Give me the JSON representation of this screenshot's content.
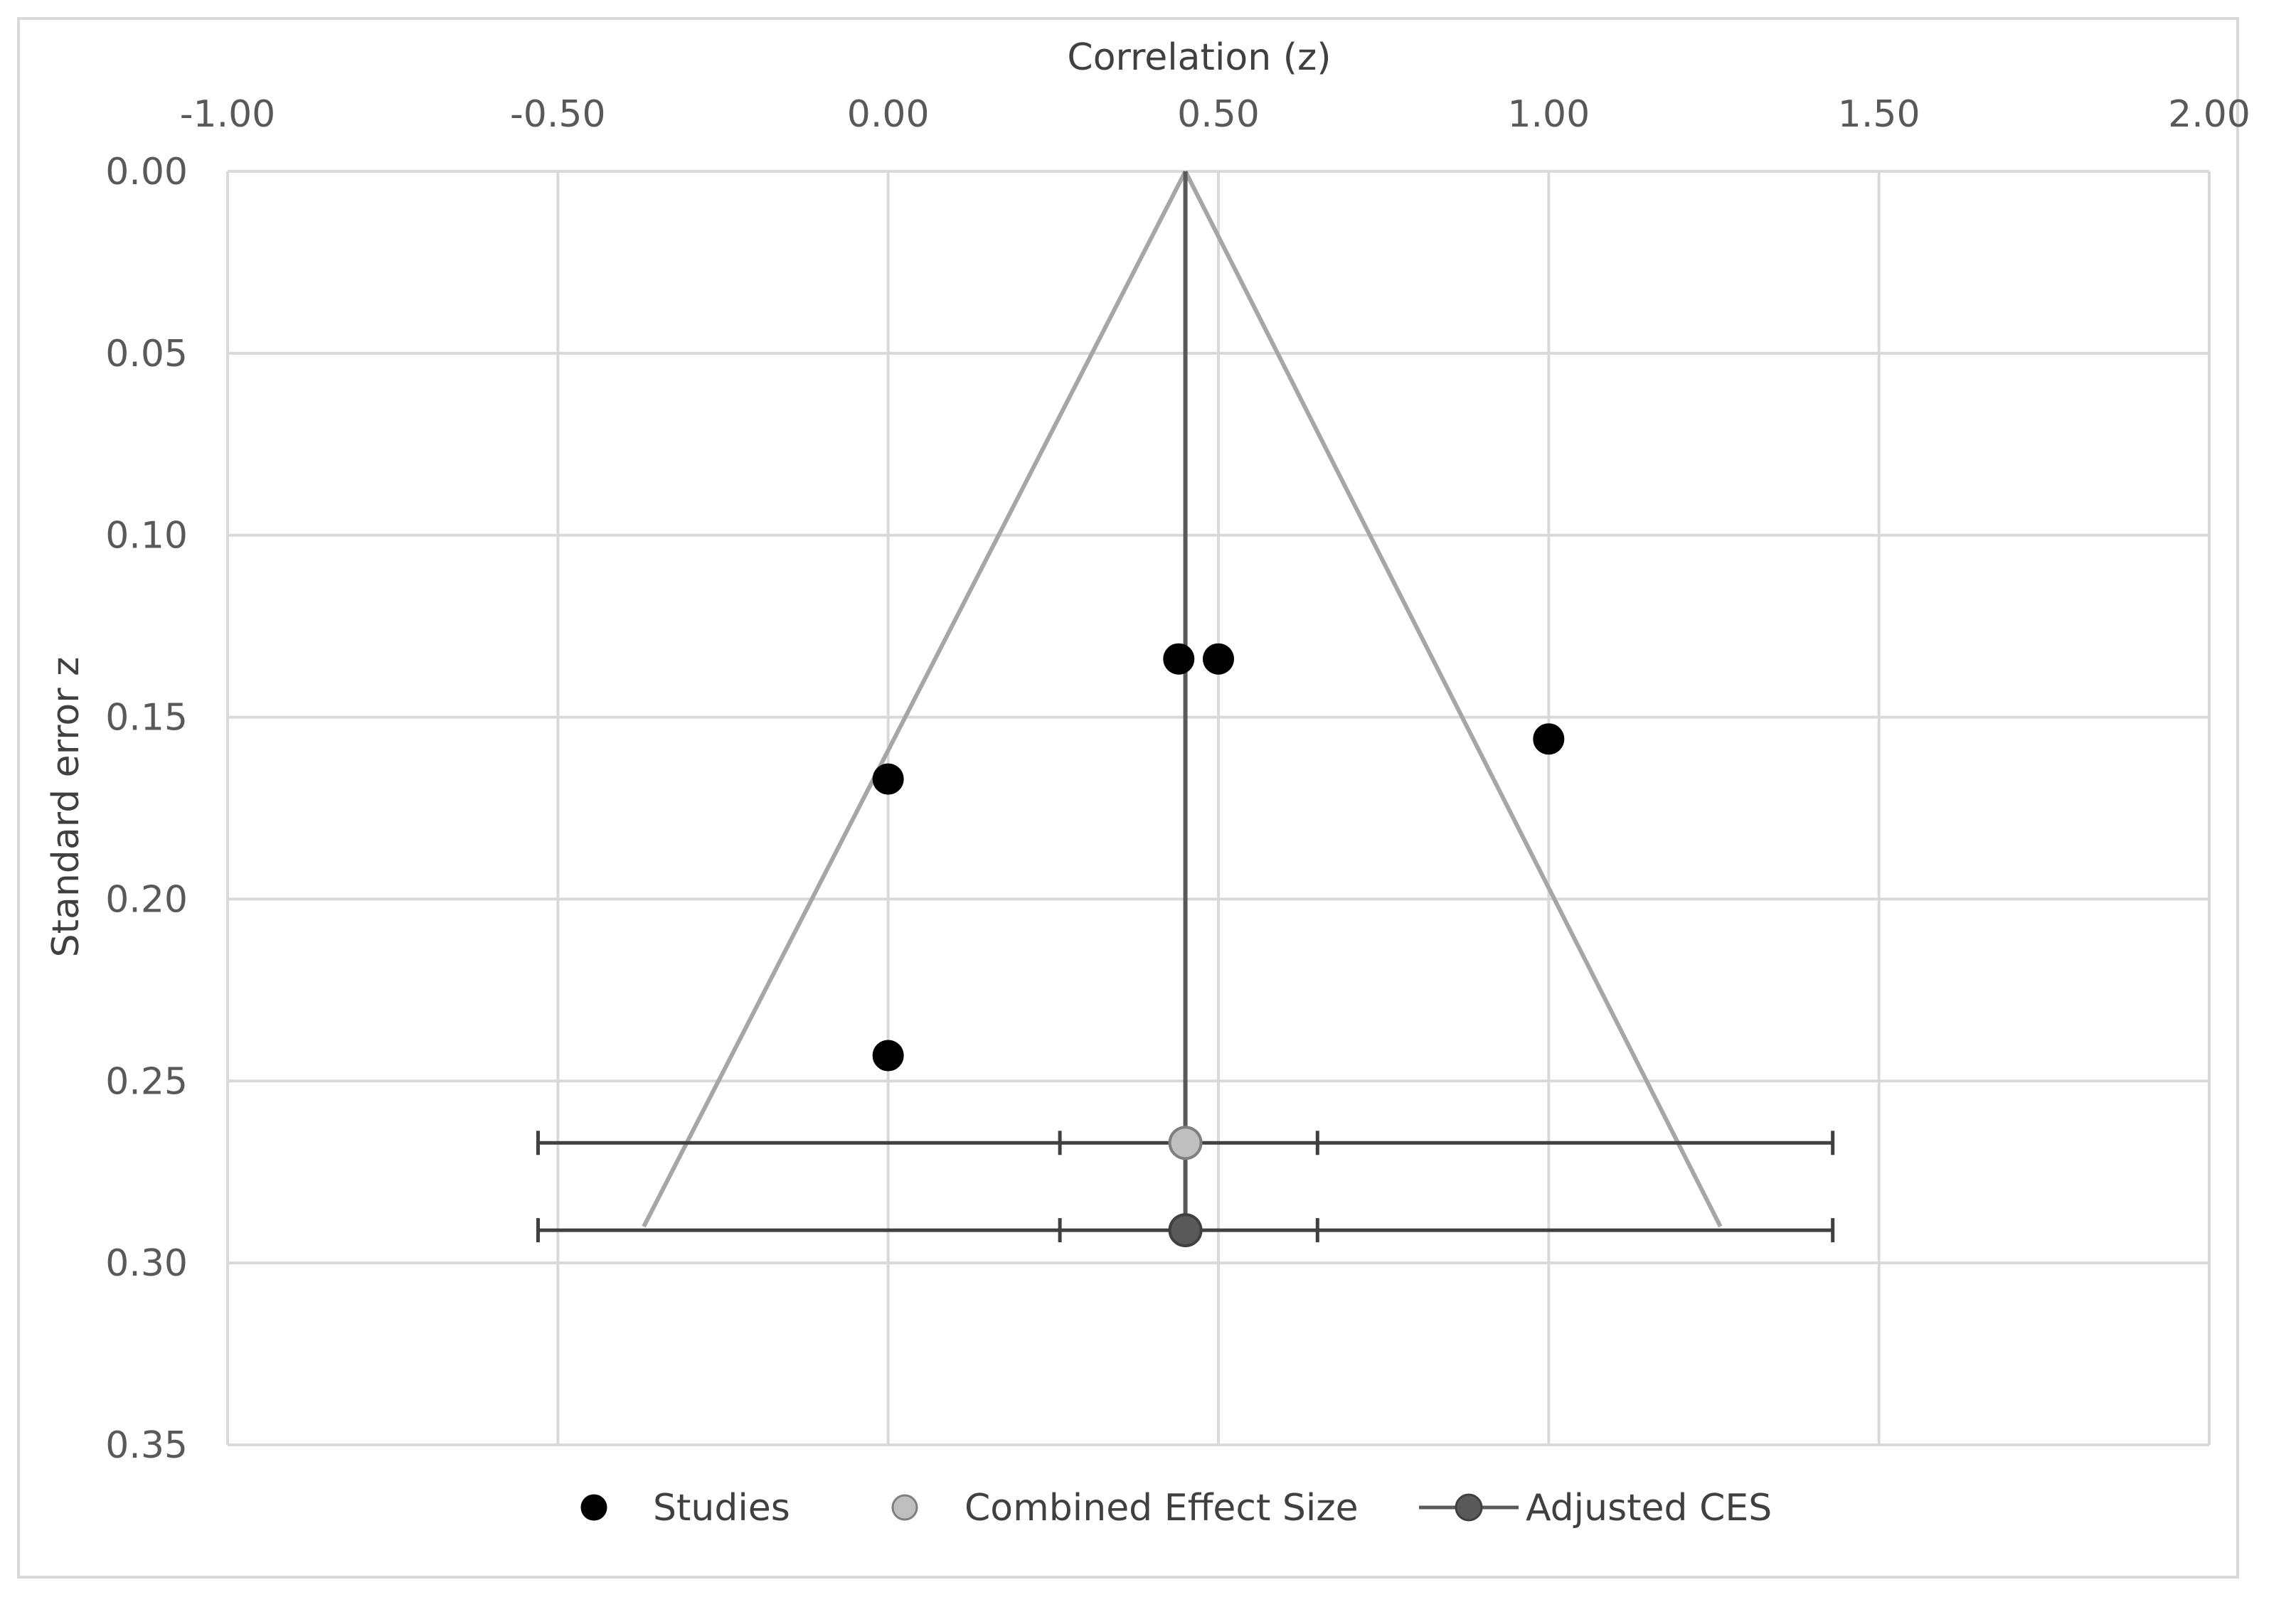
{
  "chart_data": {
    "type": "scatter",
    "title": "",
    "xlabel": "Correlation (z)",
    "ylabel": "Standard error z",
    "x_axis_position": "top",
    "y_axis_reversed": true,
    "xlim": [
      -1.0,
      2.0
    ],
    "ylim": [
      0.0,
      0.35
    ],
    "x_ticks": [
      -1.0,
      -0.5,
      0.0,
      0.5,
      1.0,
      1.5,
      2.0
    ],
    "x_tick_labels": [
      "-1.00",
      "-0.50",
      "0.00",
      "0.50",
      "1.00",
      "1.50",
      "2.00"
    ],
    "y_ticks": [
      0.0,
      0.05,
      0.1,
      0.15,
      0.2,
      0.25,
      0.3,
      0.35
    ],
    "y_tick_labels": [
      "0.00",
      "0.05",
      "0.10",
      "0.15",
      "0.20",
      "0.25",
      "0.30",
      "0.35"
    ],
    "grid": true,
    "funnel": {
      "apex": [
        0.45,
        0.0
      ],
      "base_left": [
        -0.37,
        0.29
      ],
      "base_right": [
        1.26,
        0.29
      ],
      "color": "#a6a6a6"
    },
    "combined_line": {
      "x": 0.45,
      "y_from": 0.0,
      "y_to": 0.29,
      "color": "#595959"
    },
    "series": [
      {
        "name": "Studies",
        "color": "#000000",
        "points": [
          {
            "x": 0.44,
            "y": 0.134
          },
          {
            "x": 0.5,
            "y": 0.134
          },
          {
            "x": 1.0,
            "y": 0.156
          },
          {
            "x": 0.0,
            "y": 0.167
          },
          {
            "x": 0.0,
            "y": 0.243
          }
        ]
      },
      {
        "name": "Combined Effect Size",
        "color": "#bfbfbf",
        "points": [
          {
            "x": 0.45,
            "y": 0.267
          }
        ],
        "interval_outer": [
          -0.53,
          1.43
        ],
        "interval_inner": [
          0.26,
          0.65
        ]
      },
      {
        "name": "Adjusted CES",
        "color": "#595959",
        "points": [
          {
            "x": 0.45,
            "y": 0.291
          }
        ],
        "interval_outer": [
          -0.53,
          1.43
        ],
        "interval_inner": [
          0.26,
          0.65
        ]
      }
    ],
    "legend": {
      "position": "bottom",
      "entries": [
        "Studies",
        "Combined Effect Size",
        "Adjusted CES"
      ]
    }
  }
}
